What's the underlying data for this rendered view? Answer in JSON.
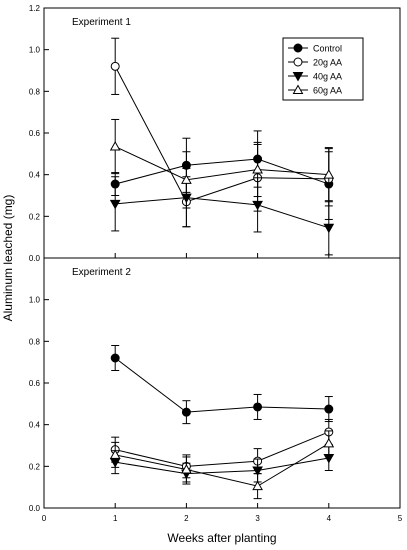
{
  "figure": {
    "ylabel": "Aluminum leached (mg)",
    "xlabel": "Weeks after planting"
  },
  "legend": [
    {
      "name": "Control",
      "marker": "circle-filled"
    },
    {
      "name": "20g AA",
      "marker": "circle-open"
    },
    {
      "name": "40g AA",
      "marker": "triangle-down-filled"
    },
    {
      "name": "60g AA",
      "marker": "triangle-up-open"
    }
  ],
  "chart_data": [
    {
      "type": "line",
      "title": "Experiment 1",
      "x": [
        1,
        2,
        3,
        4
      ],
      "xlim": [
        0,
        5
      ],
      "xticks": [
        "0",
        "1",
        "2",
        "3",
        "4",
        "5"
      ],
      "ylim": [
        0,
        1.2
      ],
      "yticks": [
        "0.0",
        "0.2",
        "0.4",
        "0.6",
        "0.8",
        "1.0",
        "1.2"
      ],
      "show_x_tick_labels": false,
      "legend_position": "top-right",
      "grid": false,
      "series": [
        {
          "name": "Control",
          "marker": "circle-filled",
          "values": [
            0.355,
            0.445,
            0.475,
            0.355
          ],
          "errors": [
            0.055,
            0.13,
            0.135,
            0.17
          ]
        },
        {
          "name": "20g AA",
          "marker": "circle-open",
          "values": [
            0.92,
            0.27,
            0.385,
            0.38
          ],
          "errors": [
            0.135,
            0.12,
            0.16,
            0.13
          ]
        },
        {
          "name": "40g AA",
          "marker": "triangle-down-filled",
          "values": [
            0.26,
            0.29,
            0.255,
            0.145
          ],
          "errors": [
            0.13,
            0.14,
            0.13,
            0.13
          ]
        },
        {
          "name": "60g AA",
          "marker": "triangle-up-open",
          "values": [
            0.535,
            0.375,
            0.425,
            0.4
          ],
          "errors": [
            0.13,
            0.135,
            0.13,
            0.13
          ]
        }
      ]
    },
    {
      "type": "line",
      "title": "Experiment 2",
      "x": [
        1,
        2,
        3,
        4
      ],
      "xlim": [
        0,
        5
      ],
      "xticks": [
        "0",
        "1",
        "2",
        "3",
        "4",
        "5"
      ],
      "ylim": [
        0,
        1.2
      ],
      "yticks": [
        "0.0",
        "0.2",
        "0.4",
        "0.6",
        "0.8",
        "1.0",
        ""
      ],
      "show_x_tick_labels": true,
      "grid": false,
      "series": [
        {
          "name": "Control",
          "marker": "circle-filled",
          "values": [
            0.72,
            0.46,
            0.485,
            0.475
          ],
          "errors": [
            0.06,
            0.055,
            0.06,
            0.06
          ]
        },
        {
          "name": "20g AA",
          "marker": "circle-open",
          "values": [
            0.28,
            0.2,
            0.225,
            0.365
          ],
          "errors": [
            0.06,
            0.055,
            0.06,
            0.06
          ]
        },
        {
          "name": "40g AA",
          "marker": "triangle-down-filled",
          "values": [
            0.22,
            0.165,
            0.18,
            0.24
          ],
          "errors": [
            0.055,
            0.05,
            0.055,
            0.06
          ]
        },
        {
          "name": "60g AA",
          "marker": "triangle-up-open",
          "values": [
            0.255,
            0.185,
            0.105,
            0.31
          ],
          "errors": [
            0.06,
            0.06,
            0.06,
            0.06
          ]
        }
      ]
    }
  ]
}
